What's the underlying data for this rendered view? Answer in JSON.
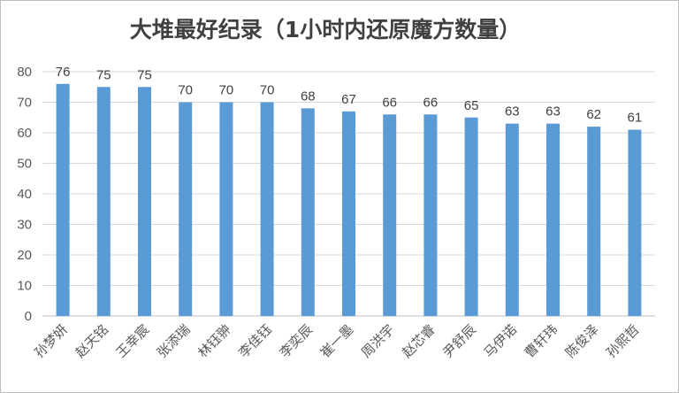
{
  "chart_data": {
    "type": "bar",
    "title": "大堆最好纪录（1小时内还原魔方数量）",
    "categories": [
      "孙梦妍",
      "赵天铭",
      "王幸宸",
      "张添瑞",
      "林钰翀",
      "李佳钰",
      "李奕辰",
      "崔一墨",
      "周洪宇",
      "赵芯睿",
      "尹舒辰",
      "马伊诺",
      "曹轩玮",
      "陈俊泽",
      "孙熙哲"
    ],
    "values": [
      76,
      75,
      75,
      70,
      70,
      70,
      68,
      67,
      66,
      66,
      65,
      63,
      63,
      62,
      61
    ],
    "ylim": [
      0,
      80
    ],
    "yticks": [
      0,
      10,
      20,
      30,
      40,
      50,
      60,
      70,
      80
    ],
    "grid": true,
    "data_labels": true,
    "xlabel": "",
    "ylabel": "",
    "bar_color": "#5b9bd5",
    "gridline_color": "#d9d9d9"
  }
}
